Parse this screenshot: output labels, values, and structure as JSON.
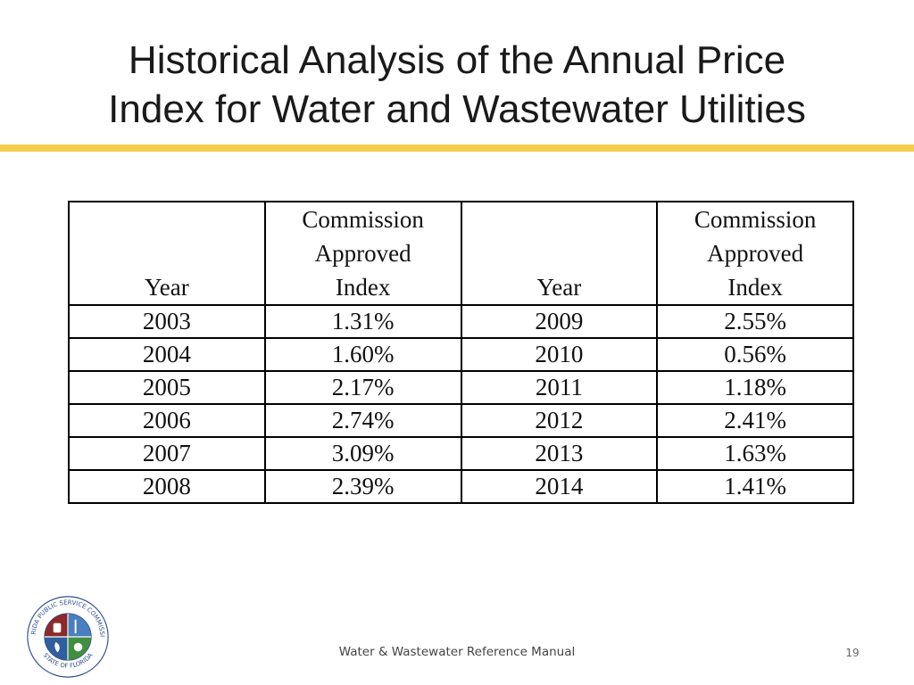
{
  "slide": {
    "title_line1": "Historical Analysis of the Annual Price",
    "title_line2": "Index for Water and Wastewater Utilities",
    "accent_color": "#f5cd4d"
  },
  "table": {
    "headers": [
      [
        "Year"
      ],
      [
        "Commission",
        "Approved",
        "Index"
      ],
      [
        "Year"
      ],
      [
        "Commission",
        "Approved",
        "Index"
      ]
    ],
    "rows": [
      [
        "2003",
        "1.31%",
        "2009",
        "2.55%"
      ],
      [
        "2004",
        "1.60%",
        "2010",
        "0.56%"
      ],
      [
        "2005",
        "2.17%",
        "2011",
        "1.18%"
      ],
      [
        "2006",
        "2.74%",
        "2012",
        "2.41%"
      ],
      [
        "2007",
        "3.09%",
        "2013",
        "1.63%"
      ],
      [
        "2008",
        "2.39%",
        "2014",
        "1.41%"
      ]
    ]
  },
  "logo": {
    "top_text": "FLORIDA PUBLIC SERVICE COMMISSION",
    "bottom_text": "STATE OF FLORIDA",
    "icon": "florida-psc-seal-icon"
  },
  "footer": {
    "text": "Water & Wastewater Reference Manual",
    "page_number": "19"
  }
}
